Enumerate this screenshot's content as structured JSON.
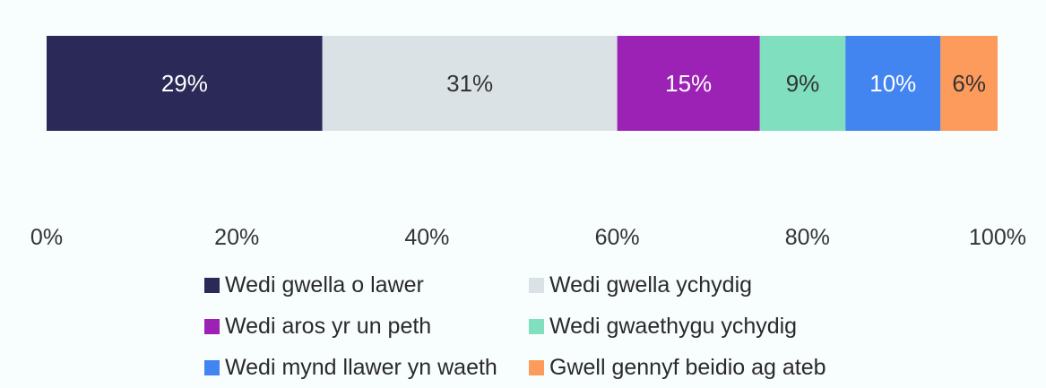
{
  "chart_data": {
    "type": "bar",
    "orientation": "horizontal",
    "stacked": true,
    "categories": [
      ""
    ],
    "series": [
      {
        "name": "Wedi gwella o lawer",
        "values": [
          29
        ],
        "label": "29%",
        "color": "#2b2958",
        "label_color": "#ffffff"
      },
      {
        "name": "Wedi gwella ychydig",
        "values": [
          31
        ],
        "label": "31%",
        "color": "#dbe2e6",
        "label_color": "#333333"
      },
      {
        "name": "Wedi aros yr un peth",
        "values": [
          15
        ],
        "label": "15%",
        "color": "#9b22b5",
        "label_color": "#ffffff"
      },
      {
        "name": "Wedi gwaethygu ychydig",
        "values": [
          9
        ],
        "label": "9%",
        "color": "#7fdfbe",
        "label_color": "#333333"
      },
      {
        "name": "Wedi mynd llawer yn waeth",
        "values": [
          10
        ],
        "label": "10%",
        "color": "#4285f0",
        "label_color": "#ffffff"
      },
      {
        "name": "Gwell gennyf beidio ag ateb",
        "values": [
          6
        ],
        "label": "6%",
        "color": "#fd9b5c",
        "label_color": "#333333"
      }
    ],
    "xlim": [
      0,
      100
    ],
    "ticks": [
      0,
      20,
      40,
      60,
      80,
      100
    ],
    "tick_labels": [
      "0%",
      "20%",
      "40%",
      "60%",
      "80%",
      "100%"
    ],
    "grid": false,
    "legend_position": "bottom"
  }
}
